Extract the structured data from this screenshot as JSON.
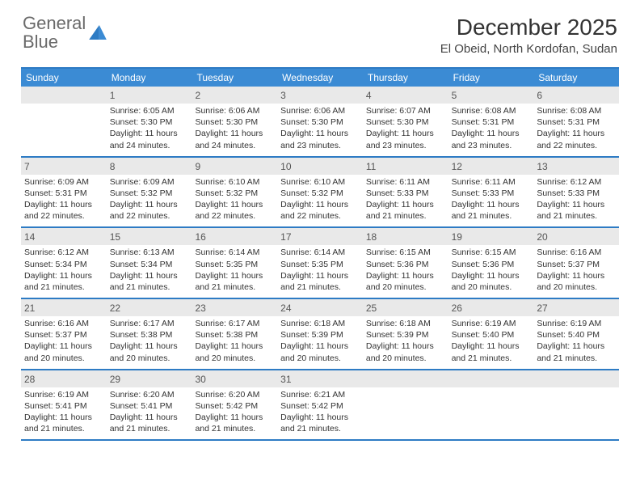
{
  "brand": {
    "word1": "General",
    "word2": "Blue",
    "color_gray": "#6a6a6a",
    "color_blue": "#3b8bd4"
  },
  "title": "December 2025",
  "location": "El Obeid, North Kordofan, Sudan",
  "colors": {
    "header_bg": "#3b8bd4",
    "header_text": "#ffffff",
    "day_border": "#2d7bc4",
    "daynum_bg": "#e9e9e9",
    "text": "#333333"
  },
  "day_names": [
    "Sunday",
    "Monday",
    "Tuesday",
    "Wednesday",
    "Thursday",
    "Friday",
    "Saturday"
  ],
  "weeks": [
    [
      {
        "n": "",
        "sr": "",
        "ss": "",
        "d1": "",
        "d2": ""
      },
      {
        "n": "1",
        "sr": "Sunrise: 6:05 AM",
        "ss": "Sunset: 5:30 PM",
        "d1": "Daylight: 11 hours",
        "d2": "and 24 minutes."
      },
      {
        "n": "2",
        "sr": "Sunrise: 6:06 AM",
        "ss": "Sunset: 5:30 PM",
        "d1": "Daylight: 11 hours",
        "d2": "and 24 minutes."
      },
      {
        "n": "3",
        "sr": "Sunrise: 6:06 AM",
        "ss": "Sunset: 5:30 PM",
        "d1": "Daylight: 11 hours",
        "d2": "and 23 minutes."
      },
      {
        "n": "4",
        "sr": "Sunrise: 6:07 AM",
        "ss": "Sunset: 5:30 PM",
        "d1": "Daylight: 11 hours",
        "d2": "and 23 minutes."
      },
      {
        "n": "5",
        "sr": "Sunrise: 6:08 AM",
        "ss": "Sunset: 5:31 PM",
        "d1": "Daylight: 11 hours",
        "d2": "and 23 minutes."
      },
      {
        "n": "6",
        "sr": "Sunrise: 6:08 AM",
        "ss": "Sunset: 5:31 PM",
        "d1": "Daylight: 11 hours",
        "d2": "and 22 minutes."
      }
    ],
    [
      {
        "n": "7",
        "sr": "Sunrise: 6:09 AM",
        "ss": "Sunset: 5:31 PM",
        "d1": "Daylight: 11 hours",
        "d2": "and 22 minutes."
      },
      {
        "n": "8",
        "sr": "Sunrise: 6:09 AM",
        "ss": "Sunset: 5:32 PM",
        "d1": "Daylight: 11 hours",
        "d2": "and 22 minutes."
      },
      {
        "n": "9",
        "sr": "Sunrise: 6:10 AM",
        "ss": "Sunset: 5:32 PM",
        "d1": "Daylight: 11 hours",
        "d2": "and 22 minutes."
      },
      {
        "n": "10",
        "sr": "Sunrise: 6:10 AM",
        "ss": "Sunset: 5:32 PM",
        "d1": "Daylight: 11 hours",
        "d2": "and 22 minutes."
      },
      {
        "n": "11",
        "sr": "Sunrise: 6:11 AM",
        "ss": "Sunset: 5:33 PM",
        "d1": "Daylight: 11 hours",
        "d2": "and 21 minutes."
      },
      {
        "n": "12",
        "sr": "Sunrise: 6:11 AM",
        "ss": "Sunset: 5:33 PM",
        "d1": "Daylight: 11 hours",
        "d2": "and 21 minutes."
      },
      {
        "n": "13",
        "sr": "Sunrise: 6:12 AM",
        "ss": "Sunset: 5:33 PM",
        "d1": "Daylight: 11 hours",
        "d2": "and 21 minutes."
      }
    ],
    [
      {
        "n": "14",
        "sr": "Sunrise: 6:12 AM",
        "ss": "Sunset: 5:34 PM",
        "d1": "Daylight: 11 hours",
        "d2": "and 21 minutes."
      },
      {
        "n": "15",
        "sr": "Sunrise: 6:13 AM",
        "ss": "Sunset: 5:34 PM",
        "d1": "Daylight: 11 hours",
        "d2": "and 21 minutes."
      },
      {
        "n": "16",
        "sr": "Sunrise: 6:14 AM",
        "ss": "Sunset: 5:35 PM",
        "d1": "Daylight: 11 hours",
        "d2": "and 21 minutes."
      },
      {
        "n": "17",
        "sr": "Sunrise: 6:14 AM",
        "ss": "Sunset: 5:35 PM",
        "d1": "Daylight: 11 hours",
        "d2": "and 21 minutes."
      },
      {
        "n": "18",
        "sr": "Sunrise: 6:15 AM",
        "ss": "Sunset: 5:36 PM",
        "d1": "Daylight: 11 hours",
        "d2": "and 20 minutes."
      },
      {
        "n": "19",
        "sr": "Sunrise: 6:15 AM",
        "ss": "Sunset: 5:36 PM",
        "d1": "Daylight: 11 hours",
        "d2": "and 20 minutes."
      },
      {
        "n": "20",
        "sr": "Sunrise: 6:16 AM",
        "ss": "Sunset: 5:37 PM",
        "d1": "Daylight: 11 hours",
        "d2": "and 20 minutes."
      }
    ],
    [
      {
        "n": "21",
        "sr": "Sunrise: 6:16 AM",
        "ss": "Sunset: 5:37 PM",
        "d1": "Daylight: 11 hours",
        "d2": "and 20 minutes."
      },
      {
        "n": "22",
        "sr": "Sunrise: 6:17 AM",
        "ss": "Sunset: 5:38 PM",
        "d1": "Daylight: 11 hours",
        "d2": "and 20 minutes."
      },
      {
        "n": "23",
        "sr": "Sunrise: 6:17 AM",
        "ss": "Sunset: 5:38 PM",
        "d1": "Daylight: 11 hours",
        "d2": "and 20 minutes."
      },
      {
        "n": "24",
        "sr": "Sunrise: 6:18 AM",
        "ss": "Sunset: 5:39 PM",
        "d1": "Daylight: 11 hours",
        "d2": "and 20 minutes."
      },
      {
        "n": "25",
        "sr": "Sunrise: 6:18 AM",
        "ss": "Sunset: 5:39 PM",
        "d1": "Daylight: 11 hours",
        "d2": "and 20 minutes."
      },
      {
        "n": "26",
        "sr": "Sunrise: 6:19 AM",
        "ss": "Sunset: 5:40 PM",
        "d1": "Daylight: 11 hours",
        "d2": "and 21 minutes."
      },
      {
        "n": "27",
        "sr": "Sunrise: 6:19 AM",
        "ss": "Sunset: 5:40 PM",
        "d1": "Daylight: 11 hours",
        "d2": "and 21 minutes."
      }
    ],
    [
      {
        "n": "28",
        "sr": "Sunrise: 6:19 AM",
        "ss": "Sunset: 5:41 PM",
        "d1": "Daylight: 11 hours",
        "d2": "and 21 minutes."
      },
      {
        "n": "29",
        "sr": "Sunrise: 6:20 AM",
        "ss": "Sunset: 5:41 PM",
        "d1": "Daylight: 11 hours",
        "d2": "and 21 minutes."
      },
      {
        "n": "30",
        "sr": "Sunrise: 6:20 AM",
        "ss": "Sunset: 5:42 PM",
        "d1": "Daylight: 11 hours",
        "d2": "and 21 minutes."
      },
      {
        "n": "31",
        "sr": "Sunrise: 6:21 AM",
        "ss": "Sunset: 5:42 PM",
        "d1": "Daylight: 11 hours",
        "d2": "and 21 minutes."
      },
      {
        "n": "",
        "sr": "",
        "ss": "",
        "d1": "",
        "d2": ""
      },
      {
        "n": "",
        "sr": "",
        "ss": "",
        "d1": "",
        "d2": ""
      },
      {
        "n": "",
        "sr": "",
        "ss": "",
        "d1": "",
        "d2": ""
      }
    ]
  ]
}
